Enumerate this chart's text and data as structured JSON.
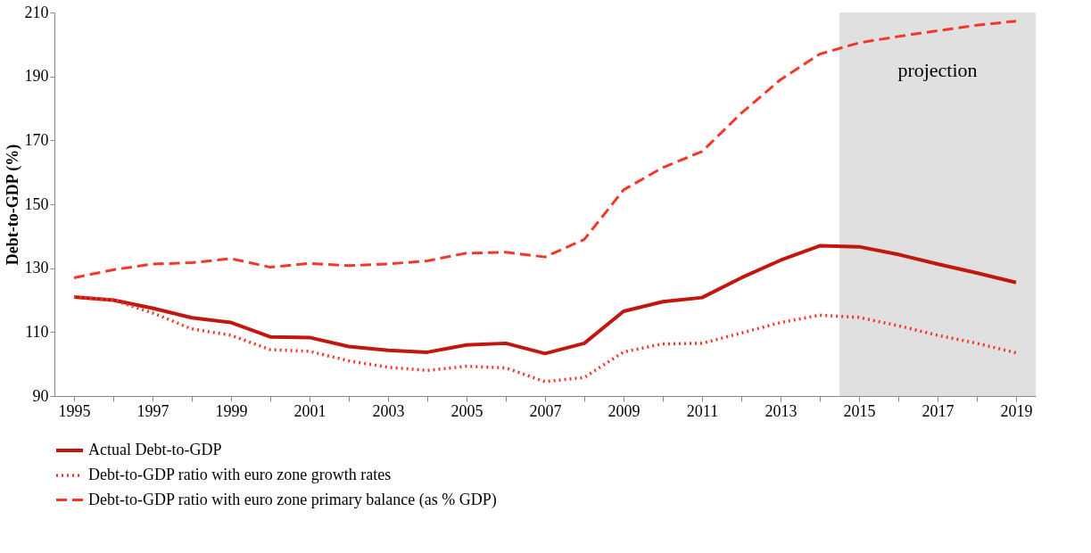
{
  "chart_data": {
    "type": "line",
    "ylabel": "Debt-to-GDP (%)",
    "categories": [
      "1995",
      null,
      "1997",
      null,
      "1999",
      null,
      "2001",
      null,
      "2003",
      null,
      "2005",
      null,
      "2007",
      null,
      "2009",
      null,
      "2011",
      null,
      "2013",
      null,
      "2015",
      null,
      "2017",
      null,
      "2019"
    ],
    "series": [
      {
        "name": "Actual Debt-to-GDP",
        "color": "#c0170f",
        "line_style": "solid",
        "values": [
          121,
          120,
          117.5,
          114.5,
          113,
          108.5,
          108.3,
          105.5,
          104.3,
          103.7,
          106,
          106.5,
          103.3,
          106.5,
          116.5,
          119.5,
          120.8,
          127,
          132.5,
          137,
          136.7,
          134.3,
          131.3,
          128.5,
          125.5
        ]
      },
      {
        "name": "Debt-to-GDP ratio with euro zone growth rates",
        "color": "#f5372a",
        "line_style": "dotted",
        "values": [
          121,
          120,
          116,
          111,
          109,
          104.5,
          104,
          101,
          99,
          98,
          99.3,
          98.8,
          94.5,
          95.8,
          103.8,
          106.3,
          106.5,
          109.7,
          113,
          115.3,
          114.6,
          112,
          109,
          106.5,
          103.5
        ]
      },
      {
        "name": "Debt-to-GDP ratio with euro zone primary balance (as % GDP)",
        "color": "#f5372a",
        "line_style": "dashed",
        "values": [
          127,
          129.5,
          131.3,
          131.7,
          133,
          130.3,
          131.5,
          130.8,
          131.3,
          132.3,
          134.7,
          135,
          133.5,
          139,
          154.5,
          161.5,
          166.5,
          178.5,
          189,
          197,
          200.5,
          202.5,
          204.3,
          206,
          207.3
        ]
      }
    ],
    "ylim": [
      90,
      210
    ],
    "yticks": [
      90,
      110,
      130,
      150,
      170,
      190,
      210
    ],
    "bands": [
      {
        "axis": "x",
        "from": "2015",
        "to": "2019",
        "label": "projection",
        "color": "#e0e0e0"
      }
    ],
    "grid": false,
    "legend": "bottom"
  }
}
